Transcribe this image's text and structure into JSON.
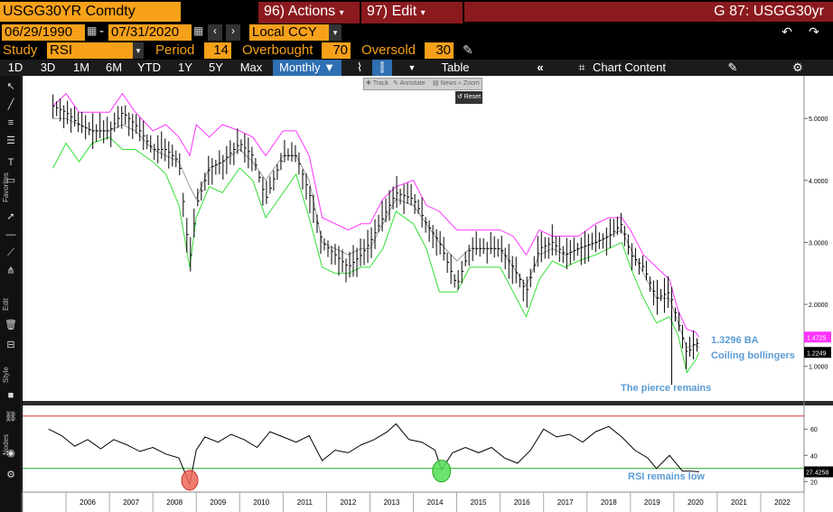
{
  "header": {
    "ticker": "USGG30YR Comdty",
    "actions_label": "96) Actions",
    "edit_label": "97) Edit",
    "title_right": "G 87: USGG30yr"
  },
  "range": {
    "start_date": "06/29/1990",
    "end_date": "07/31/2020",
    "currency": "Local CCY"
  },
  "study": {
    "label": "Study",
    "value": "RSI",
    "period_label": "Period",
    "period_value": "14",
    "overbought_label": "Overbought",
    "overbought_value": "70",
    "oversold_label": "Oversold",
    "oversold_value": "30"
  },
  "toolbar": {
    "periods": [
      "1D",
      "3D",
      "1M",
      "6M",
      "YTD",
      "1Y",
      "5Y",
      "Max"
    ],
    "frequency": "Monthly",
    "table_label": "Table",
    "chart_content_label": "Chart Content"
  },
  "mini_toolbar": {
    "track": "Track",
    "annotate": "Annotate",
    "news": "News",
    "zoom": "Zoom",
    "reset": "Reset"
  },
  "side_labels": {
    "favorites": "Favorites",
    "edit": "Edit",
    "style": "Style",
    "nodes": "Nodes"
  },
  "colors": {
    "upper_band": "#ff33ff",
    "lower_band": "#33dd33",
    "ma": "#999999",
    "price": "#000000",
    "annotation": "#5b9bd5",
    "overbought_line": "#e03030",
    "oversold_line": "#22aa22",
    "circle_red": "#ee6655",
    "circle_green": "#55dd55"
  },
  "annotations": {
    "price_note_1": "1.3296 BA",
    "price_note_2": "Coiling bollingers",
    "pierce_note": "The pierce remains",
    "rsi_note": "RSI remains low"
  },
  "chart_data": [
    {
      "type": "line",
      "ylim": [
        0.5,
        5.6
      ],
      "y_ticks": [
        "5.0000",
        "4.0000",
        "3.0000",
        "2.0000",
        "1.0000"
      ],
      "x_ticks": [
        "2006",
        "2007",
        "2008",
        "2009",
        "2010",
        "2011",
        "2012",
        "2013",
        "2014",
        "2015",
        "2016",
        "2017",
        "2018",
        "2019",
        "2020",
        "2021",
        "2022"
      ],
      "x": [
        2005.7,
        2006.0,
        2006.3,
        2006.6,
        2007.0,
        2007.3,
        2007.6,
        2008.0,
        2008.3,
        2008.6,
        2008.85,
        2009.0,
        2009.3,
        2009.6,
        2010.0,
        2010.3,
        2010.6,
        2011.0,
        2011.3,
        2011.6,
        2011.9,
        2012.2,
        2012.5,
        2012.8,
        2013.0,
        2013.3,
        2013.6,
        2014.0,
        2014.3,
        2014.6,
        2015.0,
        2015.3,
        2015.6,
        2016.0,
        2016.3,
        2016.6,
        2016.9,
        2017.2,
        2017.5,
        2017.8,
        2018.2,
        2018.5,
        2018.8,
        2019.0,
        2019.3,
        2019.6,
        2019.9,
        2020.1,
        2020.3,
        2020.5,
        2020.58
      ],
      "series": [
        {
          "key": "upper",
          "values": [
            5.2,
            5.4,
            5.1,
            5.1,
            5.1,
            5.4,
            5.1,
            4.8,
            4.9,
            4.7,
            4.4,
            4.9,
            4.7,
            4.9,
            4.8,
            4.7,
            4.4,
            4.8,
            4.8,
            4.4,
            3.4,
            3.3,
            3.2,
            3.3,
            3.3,
            3.7,
            3.9,
            4.0,
            3.6,
            3.5,
            3.2,
            3.2,
            3.2,
            3.2,
            3.1,
            2.8,
            3.2,
            3.1,
            3.1,
            3.1,
            3.3,
            3.4,
            3.4,
            3.2,
            2.8,
            2.6,
            2.4,
            1.9,
            1.6,
            1.55,
            1.4725
          ]
        },
        {
          "key": "mid",
          "values": [
            5.0,
            5.0,
            4.9,
            4.8,
            4.8,
            4.9,
            4.8,
            4.5,
            4.4,
            4.3,
            3.9,
            3.7,
            4.2,
            4.3,
            4.5,
            4.3,
            4.0,
            4.4,
            4.4,
            4.0,
            3.0,
            2.9,
            2.8,
            2.9,
            2.9,
            3.3,
            3.7,
            3.6,
            3.3,
            3.0,
            2.7,
            2.9,
            2.9,
            2.9,
            2.6,
            2.3,
            2.8,
            2.9,
            2.8,
            2.9,
            3.0,
            3.1,
            3.2,
            2.9,
            2.5,
            2.1,
            2.1,
            1.7,
            1.3,
            1.35,
            1.3
          ]
        },
        {
          "key": "lower",
          "values": [
            4.2,
            4.6,
            4.3,
            4.6,
            4.7,
            4.5,
            4.5,
            4.3,
            4.1,
            3.6,
            2.6,
            3.4,
            3.9,
            3.8,
            4.2,
            4.0,
            3.4,
            3.8,
            4.1,
            3.4,
            2.6,
            2.5,
            2.5,
            2.6,
            2.6,
            2.9,
            3.5,
            3.3,
            2.9,
            2.2,
            2.2,
            2.6,
            2.6,
            2.6,
            2.2,
            1.8,
            2.4,
            2.7,
            2.6,
            2.7,
            2.8,
            2.9,
            3.0,
            2.6,
            2.1,
            1.7,
            1.8,
            1.5,
            0.9,
            1.1,
            1.2249
          ]
        },
        {
          "key": "price",
          "values": [
            5.2,
            5.1,
            4.9,
            4.8,
            4.8,
            5.1,
            4.9,
            4.5,
            4.5,
            4.3,
            2.7,
            3.6,
            4.2,
            4.3,
            4.6,
            4.4,
            3.7,
            4.4,
            4.4,
            3.8,
            3.0,
            2.8,
            2.6,
            2.8,
            3.0,
            3.4,
            3.8,
            3.7,
            3.3,
            3.0,
            2.3,
            2.9,
            2.9,
            2.9,
            2.6,
            2.2,
            2.9,
            3.0,
            2.8,
            2.9,
            3.0,
            3.1,
            3.3,
            2.8,
            2.6,
            2.1,
            2.2,
            1.7,
            1.2,
            1.4,
            1.3296
          ]
        }
      ]
    },
    {
      "type": "line",
      "ylim": [
        14,
        76
      ],
      "y_ticks": [
        "60",
        "40",
        "20"
      ],
      "overbought": 70,
      "oversold": 30,
      "last_value": "27.4258",
      "series": [
        {
          "key": "rsi",
          "x": [
            2005.6,
            2005.9,
            2006.2,
            2006.5,
            2006.8,
            2007.1,
            2007.4,
            2007.7,
            2008.0,
            2008.3,
            2008.6,
            2008.85,
            2009.0,
            2009.2,
            2009.5,
            2009.8,
            2010.1,
            2010.4,
            2010.7,
            2011.0,
            2011.3,
            2011.6,
            2011.9,
            2012.2,
            2012.5,
            2012.8,
            2013.1,
            2013.4,
            2013.6,
            2013.9,
            2014.2,
            2014.5,
            2014.65,
            2014.9,
            2015.2,
            2015.5,
            2015.8,
            2016.1,
            2016.4,
            2016.7,
            2017.0,
            2017.3,
            2017.6,
            2017.9,
            2018.2,
            2018.5,
            2018.8,
            2019.1,
            2019.4,
            2019.6,
            2019.9,
            2020.2,
            2020.4,
            2020.58
          ],
          "values": [
            60,
            55,
            47,
            52,
            45,
            52,
            48,
            43,
            46,
            41,
            38,
            18,
            44,
            54,
            50,
            56,
            52,
            46,
            58,
            54,
            50,
            55,
            36,
            44,
            42,
            48,
            52,
            58,
            64,
            52,
            50,
            44,
            29,
            42,
            46,
            42,
            46,
            38,
            34,
            44,
            60,
            54,
            56,
            50,
            58,
            62,
            54,
            44,
            38,
            30,
            40,
            28,
            28,
            27.4258
          ]
        }
      ]
    }
  ]
}
